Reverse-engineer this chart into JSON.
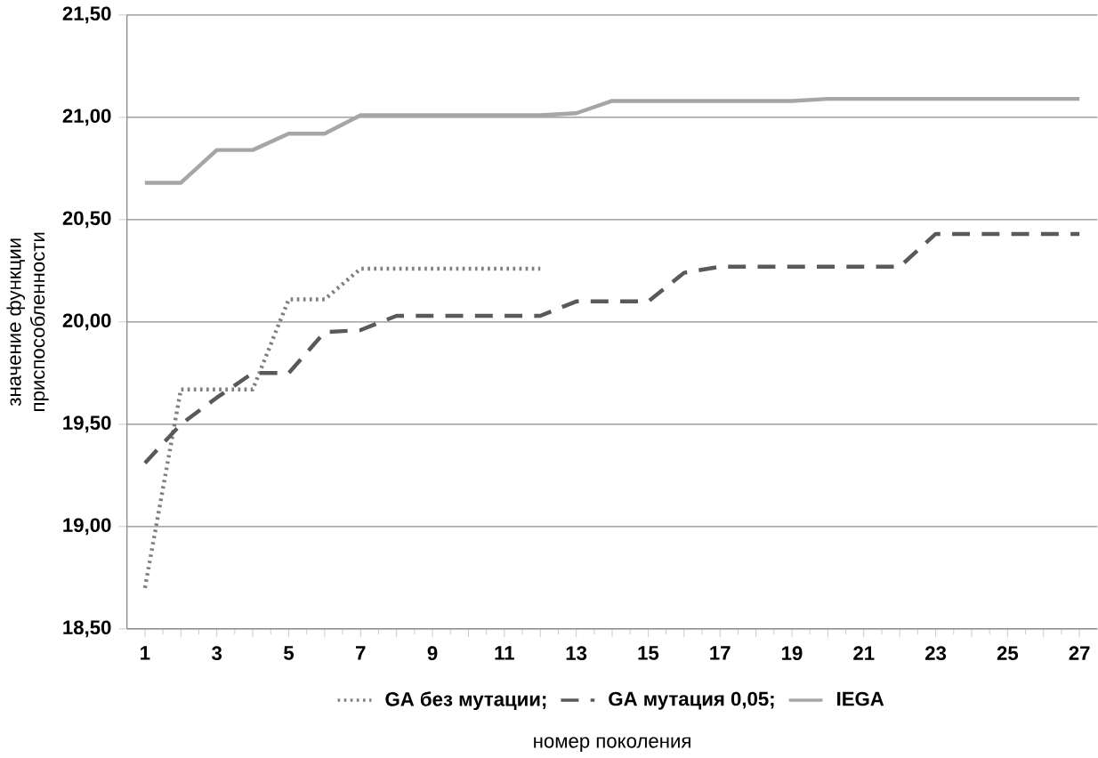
{
  "chart_data": {
    "type": "line",
    "xlabel": "номер поколения",
    "ylabel": "значение функции приспособленности",
    "categories": [
      "1",
      null,
      "3",
      null,
      "5",
      null,
      "7",
      null,
      "9",
      null,
      "11",
      null,
      "13",
      null,
      "15",
      null,
      "17",
      null,
      "19",
      null,
      "21",
      null,
      "23",
      null,
      "25",
      null,
      "27"
    ],
    "series": [
      {
        "name": "GA без мутации;",
        "color": "#7f7f7f",
        "line_style": "dotted",
        "values": [
          18.7,
          19.67,
          19.67,
          19.67,
          20.11,
          20.11,
          20.26,
          20.26,
          20.26,
          20.26,
          20.26,
          20.26,
          null,
          null,
          null,
          null,
          null,
          null,
          null,
          null,
          null,
          null,
          null,
          null,
          null,
          null,
          null
        ]
      },
      {
        "name": "GA мутация 0,05;",
        "color": "#595959",
        "line_style": "dashed",
        "values": [
          19.31,
          19.5,
          19.63,
          19.75,
          19.75,
          19.95,
          19.96,
          20.03,
          20.03,
          20.03,
          20.03,
          20.03,
          20.1,
          20.1,
          20.1,
          20.24,
          20.27,
          20.27,
          20.27,
          20.27,
          20.27,
          20.27,
          20.43,
          20.43,
          20.43,
          20.43,
          20.43
        ]
      },
      {
        "name": "IEGA",
        "color": "#a6a6a6",
        "line_style": "solid",
        "values": [
          20.68,
          20.68,
          20.84,
          20.84,
          20.92,
          20.92,
          21.01,
          21.01,
          21.01,
          21.01,
          21.01,
          21.01,
          21.02,
          21.08,
          21.08,
          21.08,
          21.08,
          21.08,
          21.08,
          21.09,
          21.09,
          21.09,
          21.09,
          21.09,
          21.09,
          21.09,
          21.09
        ]
      }
    ],
    "ylim": [
      18.5,
      21.5
    ],
    "yticks": [
      {
        "value": 18.5,
        "label": "18,50"
      },
      {
        "value": 19.0,
        "label": "19,00"
      },
      {
        "value": 19.5,
        "label": "19,50"
      },
      {
        "value": 20.0,
        "label": "20,00"
      },
      {
        "value": 20.5,
        "label": "20,50"
      },
      {
        "value": 21.0,
        "label": "21,00"
      },
      {
        "value": 21.5,
        "label": "21,50"
      }
    ],
    "grid": "y",
    "legend": "bottom",
    "marker": "none"
  }
}
